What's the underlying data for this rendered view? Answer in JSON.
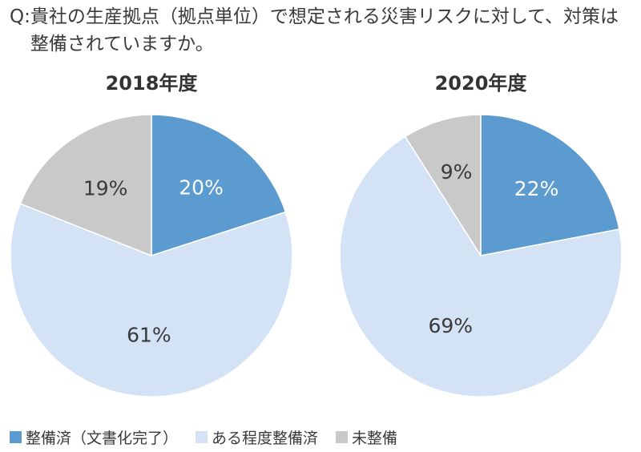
{
  "question": {
    "prefix": "Q:",
    "text": "貴社の生産拠点（拠点単位）で想定される災害リスクに対して、対策は整備されていますか。"
  },
  "chart_data": [
    {
      "type": "pie",
      "title": "2018年度",
      "categories": [
        "整備済（文書化完了）",
        "ある程度整備済",
        "未整備"
      ],
      "values": [
        20,
        61,
        19
      ],
      "labels": [
        "20%",
        "61%",
        "19%"
      ]
    },
    {
      "type": "pie",
      "title": "2020年度",
      "categories": [
        "整備済（文書化完了）",
        "ある程度整備済",
        "未整備"
      ],
      "values": [
        22,
        69,
        9
      ],
      "labels": [
        "22%",
        "69%",
        "9%"
      ]
    }
  ],
  "legend": {
    "placement": "bottom-left",
    "items": [
      {
        "label": "整備済（文書化完了）",
        "color": "#5b9bd0"
      },
      {
        "label": "ある程度整備済",
        "color": "#d3e2f4"
      },
      {
        "label": "未整備",
        "color": "#c9c9c9"
      }
    ]
  },
  "colors": {
    "segment_colors": [
      "#5b9bd0",
      "#d3e2f4",
      "#c9c9c9"
    ],
    "label_colors": [
      "#ffffff",
      "#3a3a3a",
      "#3a3a3a"
    ],
    "divider": "#ffffff"
  }
}
